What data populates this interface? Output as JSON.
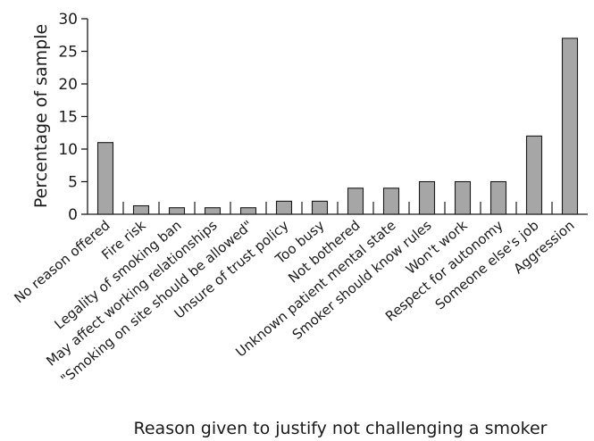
{
  "chart_data": {
    "type": "bar",
    "title": "",
    "xlabel": "Reason given to justify not challenging a smoker",
    "ylabel": "Percentage of sample",
    "ylim": [
      0,
      30
    ],
    "yticks": [
      0,
      5,
      10,
      15,
      20,
      25,
      30
    ],
    "grid": false,
    "legend": "none",
    "bar_color": "#a6a6a6",
    "categories": [
      "No reason offered",
      "Fire risk",
      "Legality of smoking ban",
      "May affect working relationships",
      "\"Smoking on site should be allowed\"",
      "Unsure of trust policy",
      "Too busy",
      "Not bothered",
      "Unknown patient mental state",
      "Smoker should know rules",
      "Won't work",
      "Respect for autonomy",
      "Someone else's job",
      "Aggression"
    ],
    "values": [
      11,
      1.3,
      1,
      1,
      1,
      2,
      2,
      4,
      4,
      5,
      5,
      5,
      12,
      27
    ]
  }
}
